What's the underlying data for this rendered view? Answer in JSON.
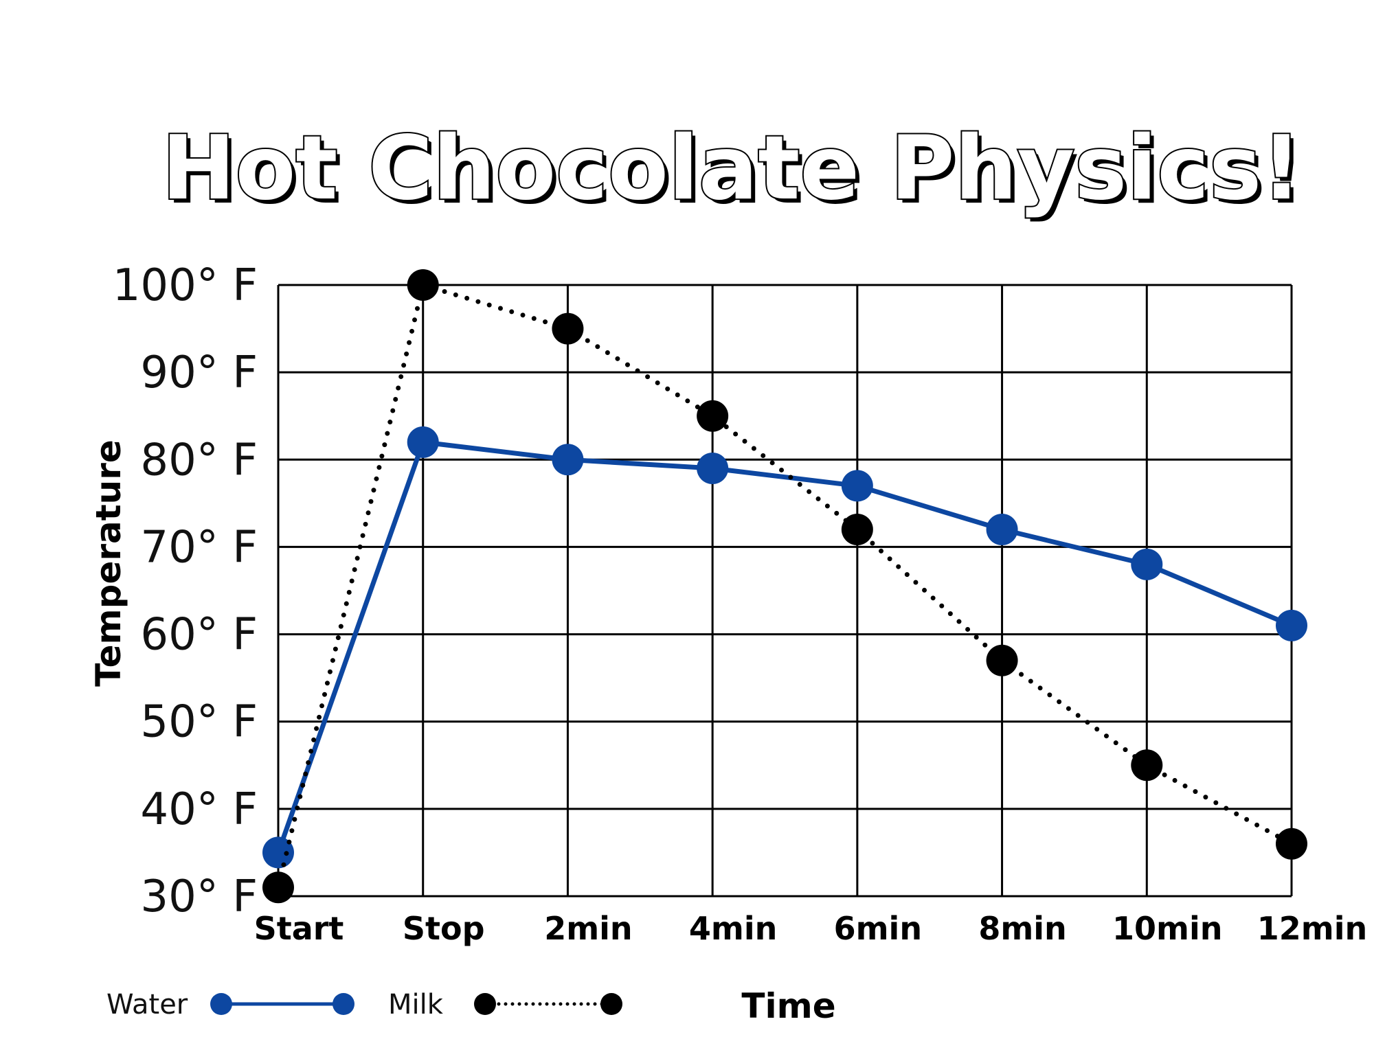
{
  "chart_data": {
    "type": "line",
    "title": "Hot Chocolate Physics!",
    "xlabel": "Time",
    "ylabel": "Temperature",
    "categories": [
      "Start",
      "Stop",
      "2min",
      "4min",
      "6min",
      "8min",
      "10min",
      "12min"
    ],
    "y_ticks": [
      30,
      40,
      50,
      60,
      70,
      80,
      90,
      100
    ],
    "y_tick_labels": [
      "30° F",
      "40° F",
      "50° F",
      "60° F",
      "70° F",
      "80° F",
      "90° F",
      "100° F"
    ],
    "ylim": [
      30,
      100
    ],
    "grid": true,
    "legend_position": "bottom-left",
    "series": [
      {
        "name": "Water",
        "color": "#0d47a1",
        "style": "solid",
        "values": [
          35,
          82,
          80,
          79,
          77,
          72,
          68,
          61
        ]
      },
      {
        "name": "Milk",
        "color": "#000000",
        "style": "dotted",
        "values": [
          31,
          100,
          95,
          85,
          72,
          57,
          45,
          36
        ]
      }
    ]
  }
}
